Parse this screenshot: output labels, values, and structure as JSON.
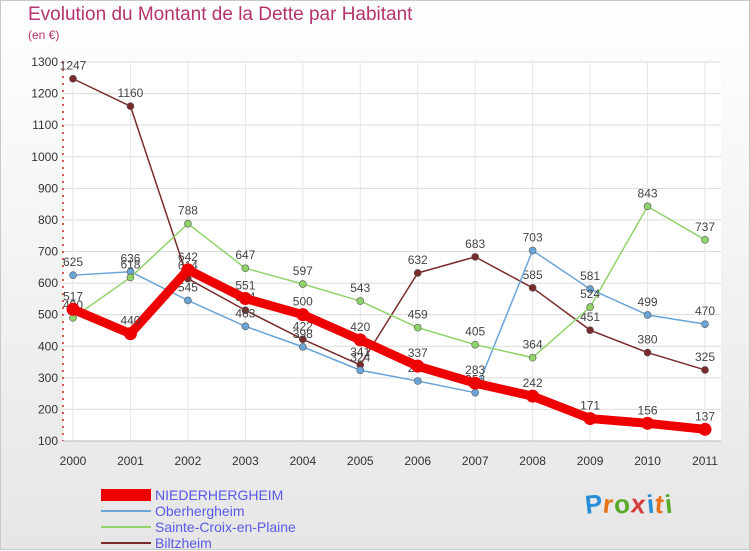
{
  "header": {
    "title": "Evolution du Montant de la Dette par Habitant",
    "subtitle": "(en €)"
  },
  "logo": {
    "text": "Proxiti",
    "letter_colors": [
      "#2a8ed6",
      "#e8741a",
      "#5aaa2a",
      "#d63c3c",
      "#2a8ed6",
      "#e8741a",
      "#5aaa2a"
    ]
  },
  "chart_data": {
    "type": "line",
    "title": "Evolution du Montant de la Dette par Habitant",
    "subtitle": "(en €)",
    "x": [
      "2000",
      "2001",
      "2002",
      "2003",
      "2004",
      "2005",
      "2006",
      "2007",
      "2008",
      "2009",
      "2010",
      "2011"
    ],
    "ylim": [
      100,
      1300
    ],
    "yticks": [
      100,
      200,
      300,
      400,
      500,
      600,
      700,
      800,
      900,
      1000,
      1100,
      1200,
      1300
    ],
    "grid": true,
    "legend_position": "bottom-left",
    "series": [
      {
        "name": "NIEDERHERGHEIM",
        "color": "#ee0000",
        "values": [
          517,
          440,
          642,
          551,
          500,
          420,
          337,
          283,
          242,
          171,
          156,
          137
        ]
      },
      {
        "name": "Oberhergheim",
        "color": "#6aa5d8",
        "values": [
          625,
          636,
          545,
          463,
          398,
          324,
          290,
          253,
          703,
          581,
          499,
          470
        ]
      },
      {
        "name": "Sainte-Croix-en-Plaine",
        "color": "#8fd36a",
        "values": [
          490,
          618,
          788,
          647,
          597,
          543,
          459,
          405,
          364,
          524,
          843,
          737
        ]
      },
      {
        "name": "Biltzheim",
        "color": "#7a2a2a",
        "values": [
          1247,
          1160,
          614,
          514,
          422,
          341,
          632,
          683,
          585,
          451,
          380,
          325
        ]
      }
    ]
  }
}
